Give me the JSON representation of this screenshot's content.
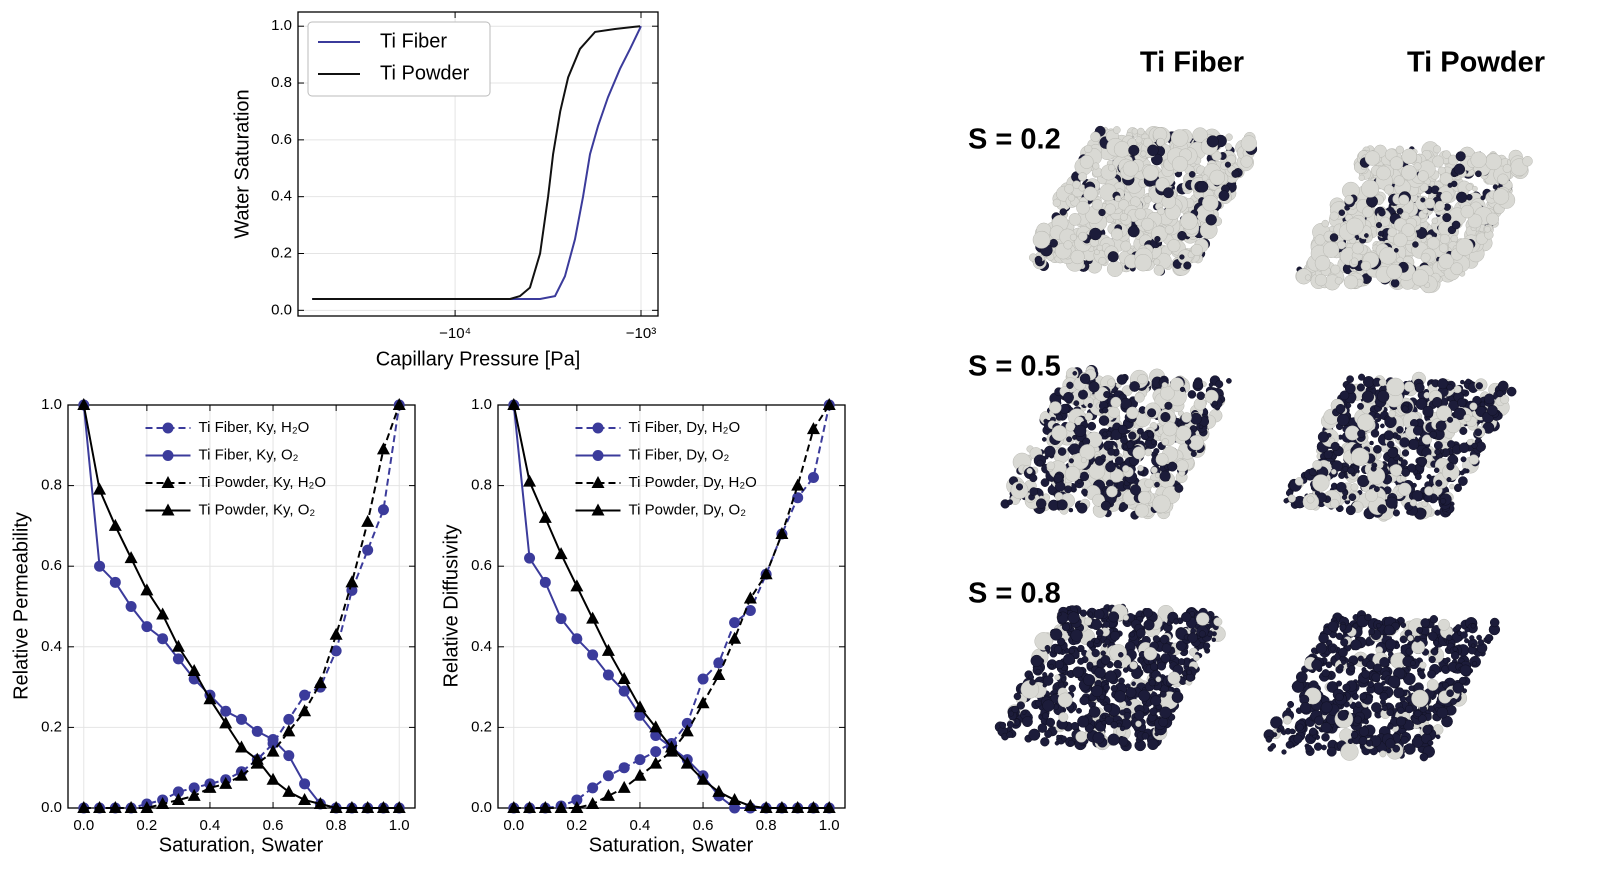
{
  "chart_data": [
    {
      "type": "line",
      "xlabel": "Capillary Pressure [Pa]",
      "ylabel": "Water Saturation",
      "xscale": "log",
      "xlim": [
        -70000,
        -810
      ],
      "ylim": [
        -0.02,
        1.05
      ],
      "xticks": [
        {
          "value": -10000,
          "label": "−10⁴"
        },
        {
          "value": -1000,
          "label": "−10³"
        }
      ],
      "yticks": [
        {
          "value": 0,
          "label": "0.0"
        },
        0.2,
        0.4,
        0.6,
        0.8,
        {
          "value": 1,
          "label": "1.0"
        }
      ],
      "grid": true,
      "legend": "upper left",
      "series": [
        {
          "name": "Ti Fiber",
          "color": "#3b3b9b",
          "x": [
            -58700,
            -3490,
            -2900,
            -2565,
            -2265,
            -2050,
            -1880,
            -1700,
            -1505,
            -1297,
            -1145,
            -1000
          ],
          "values": [
            0.04,
            0.04,
            0.05,
            0.12,
            0.25,
            0.4,
            0.55,
            0.65,
            0.75,
            0.85,
            0.92,
            1.0
          ]
        },
        {
          "name": "Ti Powder",
          "color": "#111111",
          "x": [
            -58700,
            -5060,
            -4480,
            -3955,
            -3490,
            -3160,
            -2970,
            -2720,
            -2465,
            -2130,
            -1765,
            -1380,
            -1012
          ],
          "values": [
            0.04,
            0.04,
            0.05,
            0.08,
            0.2,
            0.4,
            0.55,
            0.7,
            0.82,
            0.92,
            0.98,
            0.99,
            1.0
          ]
        }
      ]
    },
    {
      "type": "line",
      "xlabel": "Saturation, Swater",
      "ylabel": "Relative Permeability",
      "xlim": [
        -0.05,
        1.05
      ],
      "ylim": [
        0,
        1
      ],
      "xticks": [
        {
          "value": 0,
          "label": "0.0"
        },
        0.2,
        0.4,
        0.6,
        0.8,
        {
          "value": 1,
          "label": "1.0"
        }
      ],
      "yticks": [
        {
          "value": 0,
          "label": "0.0"
        },
        0.2,
        0.4,
        0.6,
        0.8,
        {
          "value": 1,
          "label": "1.0"
        }
      ],
      "grid": true,
      "legend": "upper center",
      "x": [
        0,
        0.05,
        0.1,
        0.15,
        0.2,
        0.25,
        0.3,
        0.35,
        0.4,
        0.45,
        0.5,
        0.55,
        0.6,
        0.65,
        0.7,
        0.75,
        0.8,
        0.85,
        0.9,
        0.95,
        1
      ],
      "series": [
        {
          "name": "Ti Fiber, Ky, H₂O",
          "color": "#3b3b9b",
          "dash": true,
          "marker": "circle",
          "values": [
            0,
            0,
            0,
            0,
            0.01,
            0.02,
            0.04,
            0.05,
            0.06,
            0.07,
            0.09,
            0.12,
            0.16,
            0.22,
            0.28,
            0.3,
            0.39,
            0.54,
            0.64,
            0.74,
            1.0
          ]
        },
        {
          "name": "Ti Fiber, Ky, O₂",
          "color": "#3b3b9b",
          "dash": false,
          "marker": "circle",
          "values": [
            1.0,
            0.6,
            0.56,
            0.5,
            0.45,
            0.42,
            0.37,
            0.32,
            0.28,
            0.24,
            0.22,
            0.19,
            0.17,
            0.13,
            0.06,
            0.01,
            0,
            0,
            0,
            0,
            0
          ]
        },
        {
          "name": "Ti Powder, Ky, H₂O",
          "color": "#000000",
          "dash": true,
          "marker": "triangle",
          "values": [
            0,
            0,
            0,
            0,
            0,
            0.01,
            0.02,
            0.03,
            0.05,
            0.06,
            0.08,
            0.11,
            0.14,
            0.19,
            0.24,
            0.31,
            0.43,
            0.56,
            0.71,
            0.89,
            1.0
          ]
        },
        {
          "name": "Ti Powder, Ky, O₂",
          "color": "#000000",
          "dash": false,
          "marker": "triangle",
          "values": [
            1.0,
            0.79,
            0.7,
            0.62,
            0.54,
            0.48,
            0.4,
            0.34,
            0.27,
            0.21,
            0.15,
            0.12,
            0.07,
            0.04,
            0.02,
            0.01,
            0,
            0,
            0,
            0,
            0
          ]
        }
      ]
    },
    {
      "type": "line",
      "xlabel": "Saturation, Swater",
      "ylabel": "Relative Diffusivity",
      "xlim": [
        -0.05,
        1.05
      ],
      "ylim": [
        0,
        1
      ],
      "xticks": [
        {
          "value": 0,
          "label": "0.0"
        },
        0.2,
        0.4,
        0.6,
        0.8,
        {
          "value": 1,
          "label": "1.0"
        }
      ],
      "yticks": [
        {
          "value": 0,
          "label": "0.0"
        },
        0.2,
        0.4,
        0.6,
        0.8,
        {
          "value": 1,
          "label": "1.0"
        }
      ],
      "grid": true,
      "legend": "upper center",
      "x": [
        0,
        0.05,
        0.1,
        0.15,
        0.2,
        0.25,
        0.3,
        0.35,
        0.4,
        0.45,
        0.5,
        0.55,
        0.6,
        0.65,
        0.7,
        0.75,
        0.8,
        0.85,
        0.9,
        0.95,
        1
      ],
      "series": [
        {
          "name": "Ti Fiber, Dy, H₂O",
          "color": "#3b3b9b",
          "dash": true,
          "marker": "circle",
          "values": [
            0,
            0,
            0,
            0.005,
            0.02,
            0.05,
            0.08,
            0.1,
            0.12,
            0.14,
            0.16,
            0.21,
            0.32,
            0.36,
            0.46,
            0.49,
            0.58,
            0.68,
            0.77,
            0.82,
            1.0
          ]
        },
        {
          "name": "Ti Fiber, Dy, O₂",
          "color": "#3b3b9b",
          "dash": false,
          "marker": "circle",
          "values": [
            1.0,
            0.62,
            0.56,
            0.47,
            0.42,
            0.38,
            0.33,
            0.29,
            0.23,
            0.18,
            0.15,
            0.12,
            0.08,
            0.03,
            0,
            0,
            0,
            0,
            0,
            0,
            0
          ]
        },
        {
          "name": "Ti Powder, Dy, H₂O",
          "color": "#000000",
          "dash": true,
          "marker": "triangle",
          "values": [
            0,
            0,
            0,
            0,
            0,
            0.01,
            0.03,
            0.05,
            0.08,
            0.11,
            0.14,
            0.19,
            0.26,
            0.33,
            0.42,
            0.52,
            0.58,
            0.68,
            0.8,
            0.94,
            1.0
          ]
        },
        {
          "name": "Ti Powder, Dy, O₂",
          "color": "#000000",
          "dash": false,
          "marker": "triangle",
          "values": [
            1.0,
            0.81,
            0.72,
            0.63,
            0.55,
            0.47,
            0.39,
            0.32,
            0.25,
            0.2,
            0.15,
            0.11,
            0.07,
            0.04,
            0.02,
            0.005,
            0,
            0,
            0,
            0,
            0
          ]
        }
      ]
    }
  ],
  "image_panel": {
    "column_titles": [
      "Ti Fiber",
      "Ti Powder"
    ],
    "row_labels": [
      "S = 0.2",
      "S = 0.5",
      "S = 0.8"
    ]
  }
}
